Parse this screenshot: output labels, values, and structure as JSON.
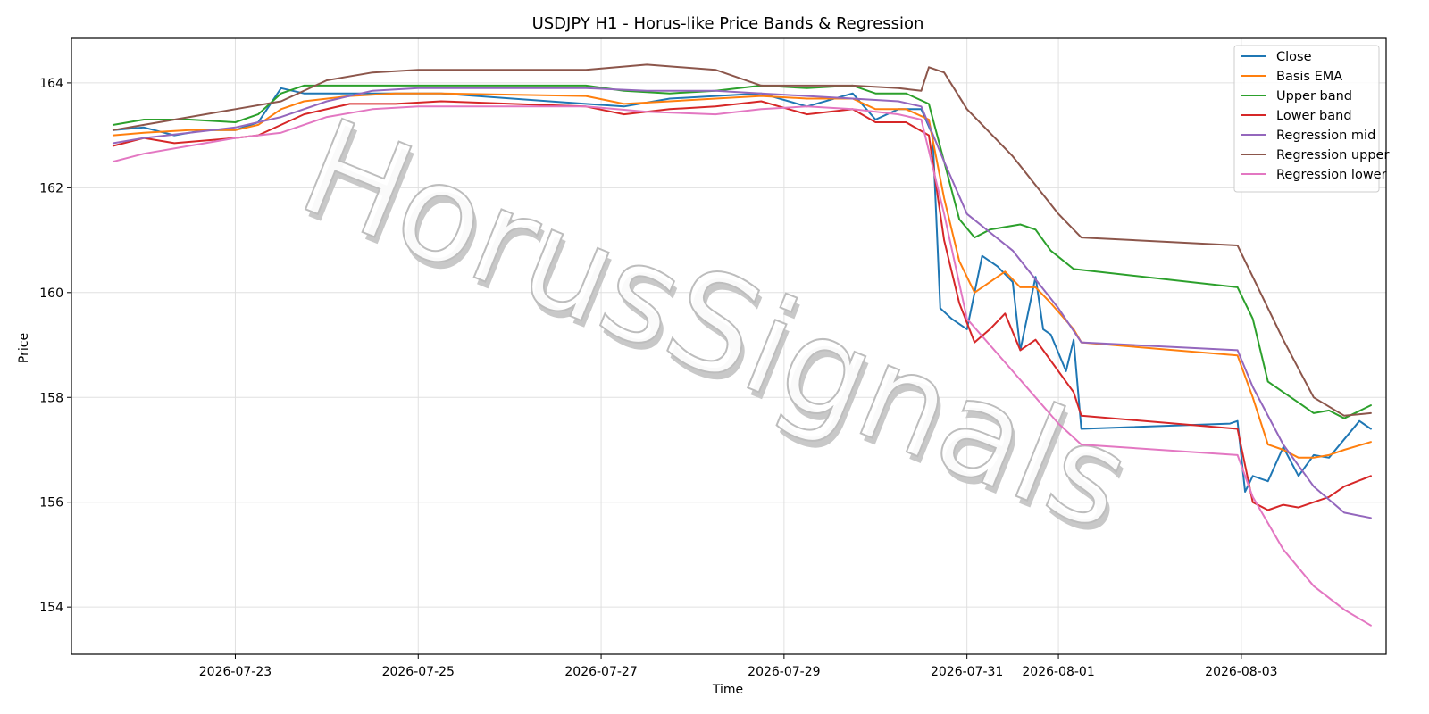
{
  "chart_data": {
    "type": "line",
    "title": "USDJPY H1 - Horus-like Price Bands & Regression",
    "xlabel": "Time",
    "ylabel": "Price",
    "watermark": "HorusSignals",
    "x_ticks": [
      "2026-07-23",
      "2026-07-25",
      "2026-07-27",
      "2026-07-29",
      "2026-07-31",
      "2026-08-01",
      "2026-08-03"
    ],
    "y_ticks": [
      154,
      156,
      158,
      160,
      162,
      164
    ],
    "xlim": [
      "2026-07-21 05:00",
      "2026-08-04 14:00"
    ],
    "ylim": [
      153.1,
      164.85
    ],
    "grid": true,
    "legend_position": "top-right",
    "series": [
      {
        "name": "Close",
        "color": "#1f77b4",
        "points": [
          [
            "2026-07-21 16:00",
            163.1
          ],
          [
            "2026-07-22 00:00",
            163.15
          ],
          [
            "2026-07-22 08:00",
            163.0
          ],
          [
            "2026-07-22 16:00",
            163.1
          ],
          [
            "2026-07-23 00:00",
            163.1
          ],
          [
            "2026-07-23 06:00",
            163.25
          ],
          [
            "2026-07-23 12:00",
            163.9
          ],
          [
            "2026-07-23 18:00",
            163.8
          ],
          [
            "2026-07-24 06:00",
            163.8
          ],
          [
            "2026-07-24 18:00",
            163.8
          ],
          [
            "2026-07-25 06:00",
            163.8
          ],
          [
            "2026-07-26 20:00",
            163.6
          ],
          [
            "2026-07-27 06:00",
            163.55
          ],
          [
            "2026-07-27 18:00",
            163.7
          ],
          [
            "2026-07-28 06:00",
            163.75
          ],
          [
            "2026-07-28 18:00",
            163.8
          ],
          [
            "2026-07-29 06:00",
            163.55
          ],
          [
            "2026-07-29 18:00",
            163.8
          ],
          [
            "2026-07-30 00:00",
            163.3
          ],
          [
            "2026-07-30 06:00",
            163.5
          ],
          [
            "2026-07-30 12:00",
            163.5
          ],
          [
            "2026-07-30 15:00",
            163.0
          ],
          [
            "2026-07-30 17:00",
            159.7
          ],
          [
            "2026-07-30 20:00",
            159.5
          ],
          [
            "2026-07-31 00:00",
            159.3
          ],
          [
            "2026-07-31 04:00",
            160.7
          ],
          [
            "2026-07-31 08:00",
            160.5
          ],
          [
            "2026-07-31 12:00",
            160.2
          ],
          [
            "2026-07-31 14:00",
            158.9
          ],
          [
            "2026-07-31 18:00",
            160.3
          ],
          [
            "2026-07-31 20:00",
            159.3
          ],
          [
            "2026-07-31 22:00",
            159.2
          ],
          [
            "2026-08-01 02:00",
            158.5
          ],
          [
            "2026-08-01 04:00",
            159.1
          ],
          [
            "2026-08-01 06:00",
            157.4
          ],
          [
            "2026-08-02 21:00",
            157.5
          ],
          [
            "2026-08-02 23:00",
            157.55
          ],
          [
            "2026-08-03 01:00",
            156.2
          ],
          [
            "2026-08-03 03:00",
            156.5
          ],
          [
            "2026-08-03 07:00",
            156.4
          ],
          [
            "2026-08-03 11:00",
            157.05
          ],
          [
            "2026-08-03 15:00",
            156.5
          ],
          [
            "2026-08-03 19:00",
            156.9
          ],
          [
            "2026-08-03 23:00",
            156.85
          ],
          [
            "2026-08-04 03:00",
            157.2
          ],
          [
            "2026-08-04 07:00",
            157.55
          ],
          [
            "2026-08-04 10:00",
            157.4
          ]
        ]
      },
      {
        "name": "Basis EMA",
        "color": "#ff7f0e",
        "points": [
          [
            "2026-07-21 16:00",
            163.0
          ],
          [
            "2026-07-22 00:00",
            163.05
          ],
          [
            "2026-07-22 12:00",
            163.1
          ],
          [
            "2026-07-23 00:00",
            163.1
          ],
          [
            "2026-07-23 06:00",
            163.2
          ],
          [
            "2026-07-23 12:00",
            163.5
          ],
          [
            "2026-07-23 18:00",
            163.65
          ],
          [
            "2026-07-24 06:00",
            163.75
          ],
          [
            "2026-07-24 18:00",
            163.8
          ],
          [
            "2026-07-25 06:00",
            163.8
          ],
          [
            "2026-07-26 20:00",
            163.75
          ],
          [
            "2026-07-27 06:00",
            163.6
          ],
          [
            "2026-07-27 18:00",
            163.65
          ],
          [
            "2026-07-28 06:00",
            163.7
          ],
          [
            "2026-07-28 18:00",
            163.75
          ],
          [
            "2026-07-29 06:00",
            163.7
          ],
          [
            "2026-07-29 18:00",
            163.7
          ],
          [
            "2026-07-30 00:00",
            163.5
          ],
          [
            "2026-07-30 08:00",
            163.5
          ],
          [
            "2026-07-30 14:00",
            163.3
          ],
          [
            "2026-07-30 18:00",
            161.8
          ],
          [
            "2026-07-30 22:00",
            160.6
          ],
          [
            "2026-07-31 02:00",
            160.0
          ],
          [
            "2026-07-31 06:00",
            160.2
          ],
          [
            "2026-07-31 10:00",
            160.4
          ],
          [
            "2026-07-31 14:00",
            160.1
          ],
          [
            "2026-07-31 18:00",
            160.1
          ],
          [
            "2026-07-31 22:00",
            159.8
          ],
          [
            "2026-08-01 04:00",
            159.3
          ],
          [
            "2026-08-01 06:00",
            159.05
          ],
          [
            "2026-08-02 23:00",
            158.8
          ],
          [
            "2026-08-03 03:00",
            158.0
          ],
          [
            "2026-08-03 07:00",
            157.1
          ],
          [
            "2026-08-03 11:00",
            157.0
          ],
          [
            "2026-08-03 15:00",
            156.85
          ],
          [
            "2026-08-03 19:00",
            156.85
          ],
          [
            "2026-08-03 23:00",
            156.9
          ],
          [
            "2026-08-04 03:00",
            157.0
          ],
          [
            "2026-08-04 10:00",
            157.15
          ]
        ]
      },
      {
        "name": "Upper band",
        "color": "#2ca02c",
        "points": [
          [
            "2026-07-21 16:00",
            163.2
          ],
          [
            "2026-07-22 00:00",
            163.3
          ],
          [
            "2026-07-22 12:00",
            163.3
          ],
          [
            "2026-07-23 00:00",
            163.25
          ],
          [
            "2026-07-23 06:00",
            163.4
          ],
          [
            "2026-07-23 12:00",
            163.8
          ],
          [
            "2026-07-23 18:00",
            163.95
          ],
          [
            "2026-07-24 06:00",
            163.95
          ],
          [
            "2026-07-24 18:00",
            163.95
          ],
          [
            "2026-07-25 06:00",
            163.95
          ],
          [
            "2026-07-26 20:00",
            163.95
          ],
          [
            "2026-07-27 06:00",
            163.85
          ],
          [
            "2026-07-27 18:00",
            163.8
          ],
          [
            "2026-07-28 06:00",
            163.85
          ],
          [
            "2026-07-28 18:00",
            163.95
          ],
          [
            "2026-07-29 06:00",
            163.9
          ],
          [
            "2026-07-29 18:00",
            163.95
          ],
          [
            "2026-07-30 00:00",
            163.8
          ],
          [
            "2026-07-30 08:00",
            163.8
          ],
          [
            "2026-07-30 14:00",
            163.6
          ],
          [
            "2026-07-30 18:00",
            162.5
          ],
          [
            "2026-07-30 22:00",
            161.4
          ],
          [
            "2026-07-31 02:00",
            161.05
          ],
          [
            "2026-07-31 06:00",
            161.2
          ],
          [
            "2026-07-31 10:00",
            161.25
          ],
          [
            "2026-07-31 14:00",
            161.3
          ],
          [
            "2026-07-31 18:00",
            161.2
          ],
          [
            "2026-07-31 22:00",
            160.8
          ],
          [
            "2026-08-01 04:00",
            160.45
          ],
          [
            "2026-08-02 23:00",
            160.1
          ],
          [
            "2026-08-03 03:00",
            159.5
          ],
          [
            "2026-08-03 07:00",
            158.3
          ],
          [
            "2026-08-03 11:00",
            158.1
          ],
          [
            "2026-08-03 15:00",
            157.9
          ],
          [
            "2026-08-03 19:00",
            157.7
          ],
          [
            "2026-08-03 23:00",
            157.75
          ],
          [
            "2026-08-04 03:00",
            157.6
          ],
          [
            "2026-08-04 10:00",
            157.85
          ]
        ]
      },
      {
        "name": "Lower band",
        "color": "#d62728",
        "points": [
          [
            "2026-07-21 16:00",
            162.8
          ],
          [
            "2026-07-22 00:00",
            162.95
          ],
          [
            "2026-07-22 08:00",
            162.85
          ],
          [
            "2026-07-22 16:00",
            162.9
          ],
          [
            "2026-07-23 00:00",
            162.95
          ],
          [
            "2026-07-23 06:00",
            163.0
          ],
          [
            "2026-07-23 12:00",
            163.2
          ],
          [
            "2026-07-23 18:00",
            163.4
          ],
          [
            "2026-07-24 06:00",
            163.6
          ],
          [
            "2026-07-24 18:00",
            163.6
          ],
          [
            "2026-07-25 06:00",
            163.65
          ],
          [
            "2026-07-26 20:00",
            163.55
          ],
          [
            "2026-07-27 06:00",
            163.4
          ],
          [
            "2026-07-27 18:00",
            163.5
          ],
          [
            "2026-07-28 06:00",
            163.55
          ],
          [
            "2026-07-28 18:00",
            163.65
          ],
          [
            "2026-07-29 06:00",
            163.4
          ],
          [
            "2026-07-29 18:00",
            163.5
          ],
          [
            "2026-07-30 00:00",
            163.25
          ],
          [
            "2026-07-30 08:00",
            163.25
          ],
          [
            "2026-07-30 14:00",
            163.0
          ],
          [
            "2026-07-30 18:00",
            161.0
          ],
          [
            "2026-07-30 22:00",
            159.8
          ],
          [
            "2026-07-31 02:00",
            159.05
          ],
          [
            "2026-07-31 06:00",
            159.3
          ],
          [
            "2026-07-31 10:00",
            159.6
          ],
          [
            "2026-07-31 14:00",
            158.9
          ],
          [
            "2026-07-31 18:00",
            159.1
          ],
          [
            "2026-07-31 22:00",
            158.7
          ],
          [
            "2026-08-01 04:00",
            158.1
          ],
          [
            "2026-08-01 06:00",
            157.65
          ],
          [
            "2026-08-02 23:00",
            157.4
          ],
          [
            "2026-08-03 03:00",
            156.0
          ],
          [
            "2026-08-03 07:00",
            155.85
          ],
          [
            "2026-08-03 11:00",
            155.95
          ],
          [
            "2026-08-03 15:00",
            155.9
          ],
          [
            "2026-08-03 19:00",
            156.0
          ],
          [
            "2026-08-03 23:00",
            156.1
          ],
          [
            "2026-08-04 03:00",
            156.3
          ],
          [
            "2026-08-04 10:00",
            156.5
          ]
        ]
      },
      {
        "name": "Regression mid",
        "color": "#9467bd",
        "points": [
          [
            "2026-07-21 16:00",
            162.85
          ],
          [
            "2026-07-22 00:00",
            162.95
          ],
          [
            "2026-07-22 12:00",
            163.05
          ],
          [
            "2026-07-23 00:00",
            163.15
          ],
          [
            "2026-07-23 12:00",
            163.35
          ],
          [
            "2026-07-24 00:00",
            163.65
          ],
          [
            "2026-07-24 12:00",
            163.85
          ],
          [
            "2026-07-25 00:00",
            163.9
          ],
          [
            "2026-07-26 20:00",
            163.9
          ],
          [
            "2026-07-27 12:00",
            163.85
          ],
          [
            "2026-07-28 06:00",
            163.85
          ],
          [
            "2026-07-28 18:00",
            163.8
          ],
          [
            "2026-07-29 06:00",
            163.75
          ],
          [
            "2026-07-29 18:00",
            163.7
          ],
          [
            "2026-07-30 06:00",
            163.65
          ],
          [
            "2026-07-30 12:00",
            163.55
          ],
          [
            "2026-07-30 18:00",
            162.5
          ],
          [
            "2026-07-31 00:00",
            161.5
          ],
          [
            "2026-07-31 12:00",
            160.8
          ],
          [
            "2026-08-01 00:00",
            159.7
          ],
          [
            "2026-08-01 06:00",
            159.05
          ],
          [
            "2026-08-02 23:00",
            158.9
          ],
          [
            "2026-08-03 03:00",
            158.2
          ],
          [
            "2026-08-03 11:00",
            157.1
          ],
          [
            "2026-08-03 19:00",
            156.3
          ],
          [
            "2026-08-04 03:00",
            155.8
          ],
          [
            "2026-08-04 10:00",
            155.7
          ]
        ]
      },
      {
        "name": "Regression upper",
        "color": "#8c564b",
        "points": [
          [
            "2026-07-21 16:00",
            163.1
          ],
          [
            "2026-07-22 00:00",
            163.2
          ],
          [
            "2026-07-22 12:00",
            163.35
          ],
          [
            "2026-07-23 00:00",
            163.5
          ],
          [
            "2026-07-23 12:00",
            163.65
          ],
          [
            "2026-07-24 00:00",
            164.05
          ],
          [
            "2026-07-24 12:00",
            164.2
          ],
          [
            "2026-07-25 00:00",
            164.25
          ],
          [
            "2026-07-26 20:00",
            164.25
          ],
          [
            "2026-07-27 12:00",
            164.35
          ],
          [
            "2026-07-28 06:00",
            164.25
          ],
          [
            "2026-07-28 18:00",
            163.95
          ],
          [
            "2026-07-29 06:00",
            163.95
          ],
          [
            "2026-07-29 18:00",
            163.95
          ],
          [
            "2026-07-30 06:00",
            163.9
          ],
          [
            "2026-07-30 12:00",
            163.85
          ],
          [
            "2026-07-30 14:00",
            164.3
          ],
          [
            "2026-07-30 18:00",
            164.2
          ],
          [
            "2026-07-31 00:00",
            163.5
          ],
          [
            "2026-07-31 12:00",
            162.6
          ],
          [
            "2026-08-01 00:00",
            161.5
          ],
          [
            "2026-08-01 06:00",
            161.05
          ],
          [
            "2026-08-02 23:00",
            160.9
          ],
          [
            "2026-08-03 03:00",
            160.3
          ],
          [
            "2026-08-03 11:00",
            159.1
          ],
          [
            "2026-08-03 19:00",
            158.0
          ],
          [
            "2026-08-04 03:00",
            157.65
          ],
          [
            "2026-08-04 10:00",
            157.7
          ]
        ]
      },
      {
        "name": "Regression lower",
        "color": "#e377c2",
        "points": [
          [
            "2026-07-21 16:00",
            162.5
          ],
          [
            "2026-07-22 00:00",
            162.65
          ],
          [
            "2026-07-22 12:00",
            162.8
          ],
          [
            "2026-07-23 00:00",
            162.95
          ],
          [
            "2026-07-23 12:00",
            163.05
          ],
          [
            "2026-07-24 00:00",
            163.35
          ],
          [
            "2026-07-24 12:00",
            163.5
          ],
          [
            "2026-07-25 00:00",
            163.55
          ],
          [
            "2026-07-26 20:00",
            163.55
          ],
          [
            "2026-07-27 12:00",
            163.45
          ],
          [
            "2026-07-28 06:00",
            163.4
          ],
          [
            "2026-07-28 18:00",
            163.5
          ],
          [
            "2026-07-29 06:00",
            163.55
          ],
          [
            "2026-07-29 18:00",
            163.5
          ],
          [
            "2026-07-30 06:00",
            163.4
          ],
          [
            "2026-07-30 12:00",
            163.3
          ],
          [
            "2026-07-30 18:00",
            161.5
          ],
          [
            "2026-07-31 00:00",
            159.5
          ],
          [
            "2026-07-31 12:00",
            158.5
          ],
          [
            "2026-08-01 00:00",
            157.5
          ],
          [
            "2026-08-01 06:00",
            157.1
          ],
          [
            "2026-08-02 23:00",
            156.9
          ],
          [
            "2026-08-03 03:00",
            156.1
          ],
          [
            "2026-08-03 11:00",
            155.1
          ],
          [
            "2026-08-03 19:00",
            154.4
          ],
          [
            "2026-08-04 03:00",
            153.95
          ],
          [
            "2026-08-04 10:00",
            153.65
          ]
        ]
      }
    ]
  }
}
